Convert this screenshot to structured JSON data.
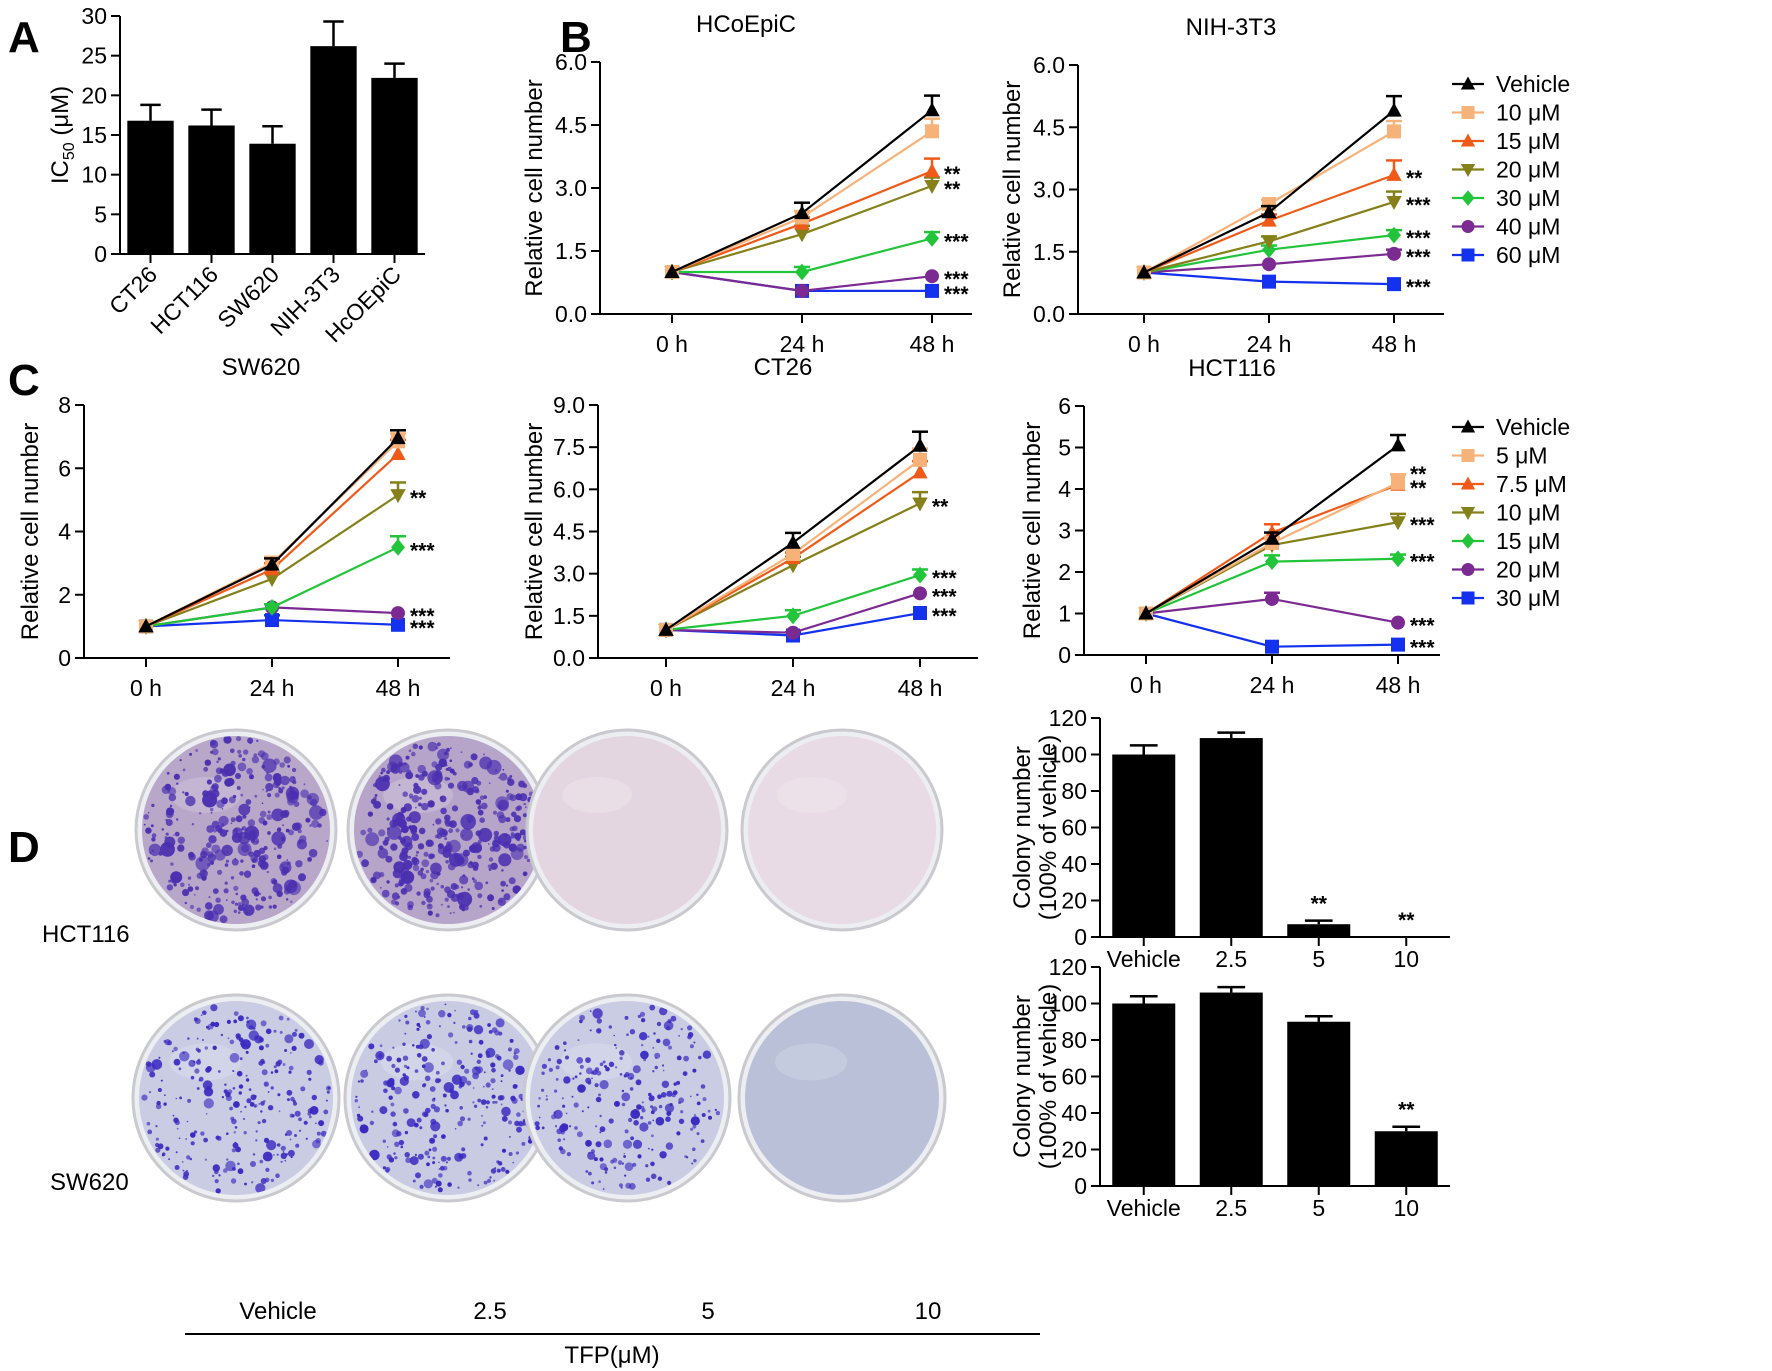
{
  "figure": {
    "panel_letters": [
      "A",
      "B",
      "C",
      "D"
    ],
    "row_labels": [
      "HCT116",
      "SW620"
    ],
    "treatment_labels": [
      "Vehicle",
      "2.5",
      "5",
      "10"
    ],
    "treatment_axis_label": "TFP(μM)",
    "dish_colors": {
      "HCT116": [
        "#b8a7c8",
        "#b7a5c9",
        "#e4d6e1",
        "#e8dbe5"
      ],
      "SW620": [
        "#c9cce2",
        "#c8cbe2",
        "#c9cce3",
        "#b9c0d8"
      ]
    },
    "colony_density": {
      "HCT116": [
        0.85,
        0.95,
        0,
        0
      ],
      "SW620": [
        0.6,
        0.65,
        0.55,
        0
      ]
    }
  },
  "legend_B": [
    {
      "label": "Vehicle",
      "color": "#000000",
      "marker": "triangle-up"
    },
    {
      "label": "10 μM",
      "color": "#f7b27a",
      "marker": "square"
    },
    {
      "label": "15 μM",
      "color": "#f05a19",
      "marker": "triangle-up"
    },
    {
      "label": "20 μM",
      "color": "#858019",
      "marker": "triangle-down"
    },
    {
      "label": "30 μM",
      "color": "#22c53a",
      "marker": "diamond"
    },
    {
      "label": "40 μM",
      "color": "#7b2a92",
      "marker": "circle"
    },
    {
      "label": "60 μM",
      "color": "#1432ee",
      "marker": "square"
    }
  ],
  "legend_C": [
    {
      "label": "Vehicle",
      "color": "#000000",
      "marker": "triangle-up"
    },
    {
      "label": "5 μM",
      "color": "#f7b27a",
      "marker": "square"
    },
    {
      "label": "7.5 μM",
      "color": "#f05a19",
      "marker": "triangle-up"
    },
    {
      "label": "10 μM",
      "color": "#858019",
      "marker": "triangle-down"
    },
    {
      "label": "15 μM",
      "color": "#22c53a",
      "marker": "diamond"
    },
    {
      "label": "20 μM",
      "color": "#7b2a92",
      "marker": "circle"
    },
    {
      "label": "30 μM",
      "color": "#1432ee",
      "marker": "square"
    }
  ],
  "chart_data": [
    {
      "id": "A",
      "type": "bar",
      "title": "",
      "xlabel": "",
      "ylabel_main": "IC",
      "ylabel_sub": "50",
      "ylabel_unit": " (μM)",
      "categories": [
        "CT26",
        "HCT116",
        "SW620",
        "NIH-3T3",
        "HcOEpiC"
      ],
      "values": [
        16.8,
        16.2,
        13.9,
        26.2,
        22.2
      ],
      "errors": [
        2.0,
        2.0,
        2.2,
        3.1,
        1.8
      ],
      "ylim": [
        0,
        30
      ],
      "yticks": [
        "0",
        "5",
        "10",
        "15",
        "20",
        "25",
        "30"
      ],
      "annotations": [
        "",
        "",
        "",
        "",
        ""
      ]
    },
    {
      "id": "B1",
      "type": "line",
      "title": "HCoEpiC",
      "ylabel": "Relative cell number",
      "x": [
        "0 h",
        "24 h",
        "48 h"
      ],
      "ylim": [
        0,
        6
      ],
      "yticks": [
        "0.0",
        "1.5",
        "3.0",
        "4.5",
        "6.0"
      ],
      "legend": "legend_B",
      "series": [
        {
          "name": "Vehicle",
          "values": [
            1.0,
            2.4,
            4.85
          ],
          "errors": [
            0,
            0.25,
            0.35
          ],
          "annotation": ""
        },
        {
          "name": "10 μM",
          "values": [
            1.0,
            2.3,
            4.35
          ],
          "errors": [
            0,
            0.15,
            0.3
          ],
          "annotation": ""
        },
        {
          "name": "15 μM",
          "values": [
            1.0,
            2.15,
            3.4
          ],
          "errors": [
            0,
            0.15,
            0.3
          ],
          "annotation": "**"
        },
        {
          "name": "20 μM",
          "values": [
            1.0,
            1.9,
            3.05
          ],
          "errors": [
            0,
            0.2,
            0.2
          ],
          "annotation": "**"
        },
        {
          "name": "30 μM",
          "values": [
            1.0,
            1.0,
            1.8
          ],
          "errors": [
            0,
            0.12,
            0.15
          ],
          "annotation": "***"
        },
        {
          "name": "40 μM",
          "values": [
            1.0,
            0.55,
            0.9
          ],
          "errors": [
            0,
            0,
            0
          ],
          "annotation": "***"
        },
        {
          "name": "60 μM",
          "values": [
            1.0,
            0.55,
            0.55
          ],
          "errors": [
            0,
            0,
            0
          ],
          "annotation": "***"
        }
      ]
    },
    {
      "id": "B2",
      "type": "line",
      "title": "NIH-3T3",
      "ylabel": "Relative cell number",
      "x": [
        "0 h",
        "24 h",
        "48 h"
      ],
      "ylim": [
        0,
        6
      ],
      "yticks": [
        "0.0",
        "1.5",
        "3.0",
        "4.5",
        "6.0"
      ],
      "legend": "legend_B",
      "series": [
        {
          "name": "Vehicle",
          "values": [
            1.0,
            2.45,
            4.9
          ],
          "errors": [
            0,
            0.15,
            0.35
          ],
          "annotation": ""
        },
        {
          "name": "10 μM",
          "values": [
            1.0,
            2.65,
            4.4
          ],
          "errors": [
            0,
            0.1,
            0.25
          ],
          "annotation": ""
        },
        {
          "name": "15 μM",
          "values": [
            1.0,
            2.25,
            3.35
          ],
          "errors": [
            0,
            0.15,
            0.35
          ],
          "annotation": "**"
        },
        {
          "name": "20 μM",
          "values": [
            1.0,
            1.75,
            2.7
          ],
          "errors": [
            0,
            0.12,
            0.25
          ],
          "annotation": "***"
        },
        {
          "name": "30 μM",
          "values": [
            1.0,
            1.55,
            1.9
          ],
          "errors": [
            0,
            0.1,
            0.12
          ],
          "annotation": "***"
        },
        {
          "name": "40 μM",
          "values": [
            1.0,
            1.2,
            1.45
          ],
          "errors": [
            0,
            0,
            0.1
          ],
          "annotation": "***"
        },
        {
          "name": "60 μM",
          "values": [
            1.0,
            0.78,
            0.72
          ],
          "errors": [
            0,
            0,
            0
          ],
          "annotation": "***"
        }
      ]
    },
    {
      "id": "C1",
      "type": "line",
      "title": "SW620",
      "ylabel": "Relative cell number",
      "x": [
        "0 h",
        "24 h",
        "48 h"
      ],
      "ylim": [
        0,
        8
      ],
      "yticks": [
        "0",
        "2",
        "4",
        "6",
        "8"
      ],
      "legend": "legend_C",
      "series": [
        {
          "name": "Vehicle",
          "values": [
            1.0,
            2.95,
            6.95
          ],
          "errors": [
            0,
            0.2,
            0.25
          ],
          "annotation": ""
        },
        {
          "name": "5 μM",
          "values": [
            1.0,
            3.0,
            6.85
          ],
          "errors": [
            0,
            0.2,
            0.25
          ],
          "annotation": ""
        },
        {
          "name": "7.5 μM",
          "values": [
            1.0,
            2.8,
            6.45
          ],
          "errors": [
            0,
            0.2,
            0.45
          ],
          "annotation": ""
        },
        {
          "name": "10 μM",
          "values": [
            1.0,
            2.5,
            5.15
          ],
          "errors": [
            0,
            0.2,
            0.4
          ],
          "annotation": "**"
        },
        {
          "name": "15 μM",
          "values": [
            1.0,
            1.6,
            3.5
          ],
          "errors": [
            0,
            0.1,
            0.35
          ],
          "annotation": "***"
        },
        {
          "name": "20 μM",
          "values": [
            1.0,
            1.6,
            1.42
          ],
          "errors": [
            0,
            0,
            0
          ],
          "annotation": "***"
        },
        {
          "name": "30 μM",
          "values": [
            1.0,
            1.2,
            1.05
          ],
          "errors": [
            0,
            0.15,
            0
          ],
          "annotation": "***"
        }
      ]
    },
    {
      "id": "C2",
      "type": "line",
      "title": "CT26",
      "ylabel": "Relative cell number",
      "x": [
        "0 h",
        "24 h",
        "48 h"
      ],
      "ylim": [
        0,
        9
      ],
      "yticks": [
        "0.0",
        "1.5",
        "3.0",
        "4.5",
        "6.0",
        "7.5",
        "9.0"
      ],
      "legend": "legend_C",
      "series": [
        {
          "name": "Vehicle",
          "values": [
            1.0,
            4.1,
            7.55
          ],
          "errors": [
            0,
            0.35,
            0.5
          ],
          "annotation": ""
        },
        {
          "name": "5 μM",
          "values": [
            1.0,
            3.7,
            7.05
          ],
          "errors": [
            0,
            0.2,
            0.4
          ],
          "annotation": ""
        },
        {
          "name": "7.5 μM",
          "values": [
            1.0,
            3.55,
            6.6
          ],
          "errors": [
            0,
            0.2,
            0.4
          ],
          "annotation": ""
        },
        {
          "name": "10 μM",
          "values": [
            1.0,
            3.3,
            5.5
          ],
          "errors": [
            0,
            0.3,
            0.4
          ],
          "annotation": "**"
        },
        {
          "name": "15 μM",
          "values": [
            1.0,
            1.5,
            2.95
          ],
          "errors": [
            0,
            0.2,
            0.2
          ],
          "annotation": "***"
        },
        {
          "name": "20 μM",
          "values": [
            1.0,
            0.9,
            2.3
          ],
          "errors": [
            0,
            0,
            0
          ],
          "annotation": "***"
        },
        {
          "name": "30 μM",
          "values": [
            1.0,
            0.8,
            1.6
          ],
          "errors": [
            0,
            0.12,
            0
          ],
          "annotation": "***"
        }
      ]
    },
    {
      "id": "C3",
      "type": "line",
      "title": "HCT116",
      "ylabel": "Relative cell number",
      "x": [
        "0 h",
        "24 h",
        "48 h"
      ],
      "ylim": [
        0,
        6
      ],
      "yticks": [
        "0",
        "1",
        "2",
        "3",
        "4",
        "5",
        "6"
      ],
      "legend": "legend_C",
      "series": [
        {
          "name": "Vehicle",
          "values": [
            1.0,
            2.8,
            5.05
          ],
          "errors": [
            0,
            0.15,
            0.25
          ],
          "annotation": ""
        },
        {
          "name": "5 μM",
          "values": [
            1.0,
            2.7,
            4.15
          ],
          "errors": [
            0,
            0.15,
            0.2
          ],
          "annotation": "**"
        },
        {
          "name": "7.5 μM",
          "values": [
            1.0,
            2.95,
            4.1
          ],
          "errors": [
            0,
            0.2,
            0.25
          ],
          "annotation": "**"
        },
        {
          "name": "10 μM",
          "values": [
            1.0,
            2.65,
            3.2
          ],
          "errors": [
            0,
            0.2,
            0.2
          ],
          "annotation": "***"
        },
        {
          "name": "15 μM",
          "values": [
            1.0,
            2.25,
            2.32
          ],
          "errors": [
            0,
            0.15,
            0.1
          ],
          "annotation": "***"
        },
        {
          "name": "20 μM",
          "values": [
            1.0,
            1.35,
            0.78
          ],
          "errors": [
            0,
            0.15,
            0
          ],
          "annotation": "***"
        },
        {
          "name": "30 μM",
          "values": [
            1.0,
            0.2,
            0.25
          ],
          "errors": [
            0,
            0,
            0
          ],
          "annotation": "***"
        }
      ]
    },
    {
      "id": "D1",
      "type": "bar",
      "title": "",
      "xlabel": "",
      "ylabel_line1": "Colony number",
      "ylabel_line2": "(100% of vehicle)",
      "categories": [
        "Vehicle",
        "2.5",
        "5",
        "10"
      ],
      "values": [
        100,
        109,
        7,
        0
      ],
      "errors": [
        5,
        3,
        2,
        0
      ],
      "ylim": [
        0,
        120
      ],
      "yticks": [
        "0",
        "20",
        "40",
        "60",
        "80",
        "100",
        "120"
      ],
      "annotations": [
        "",
        "",
        "**",
        "**"
      ]
    },
    {
      "id": "D2",
      "type": "bar",
      "title": "",
      "xlabel": "",
      "ylabel_line1": "Colony number",
      "ylabel_line2": "(100% of vehicle)",
      "categories": [
        "Vehicle",
        "2.5",
        "5",
        "10"
      ],
      "values": [
        100,
        106,
        90,
        30
      ],
      "errors": [
        4,
        3,
        3,
        2.5
      ],
      "ylim": [
        0,
        120
      ],
      "yticks": [
        "0",
        "20",
        "40",
        "60",
        "80",
        "100",
        "120"
      ],
      "annotations": [
        "",
        "",
        "",
        "**"
      ]
    }
  ]
}
